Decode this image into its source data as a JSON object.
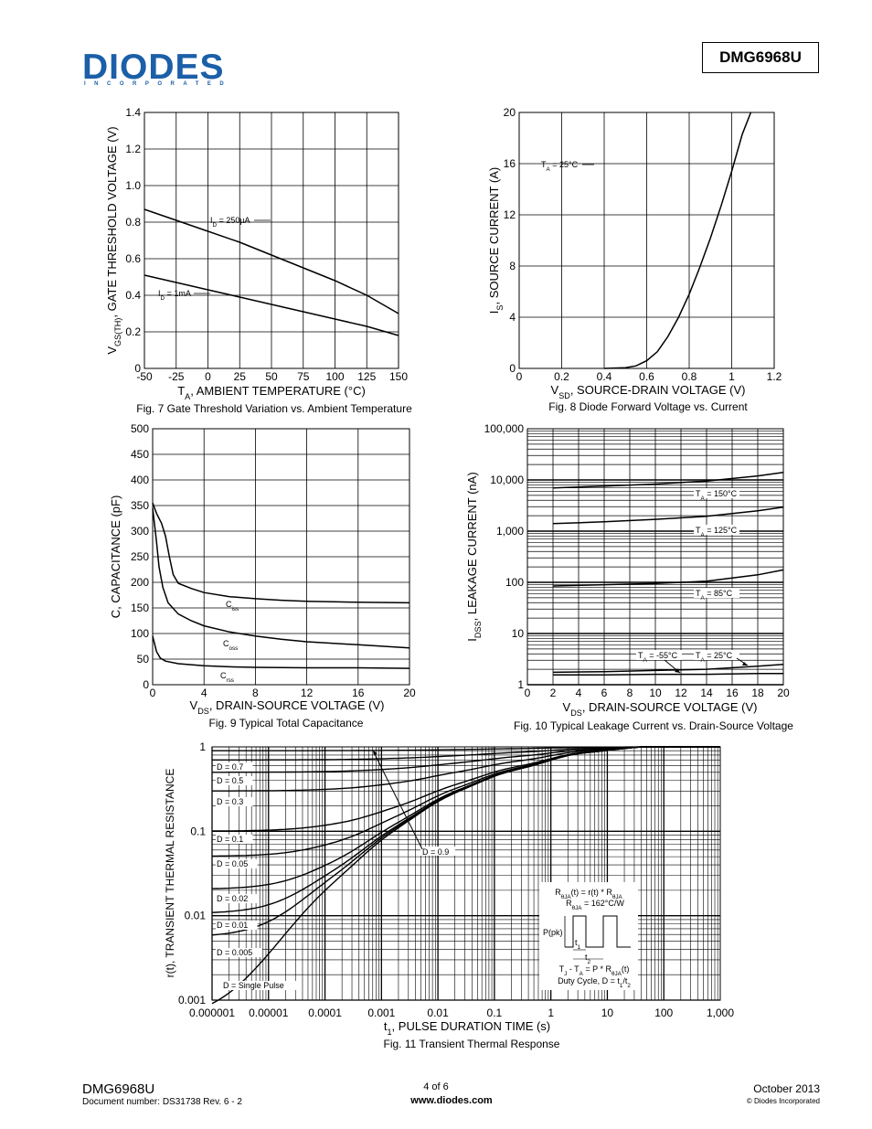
{
  "header": {
    "logo_text": "DIODES",
    "logo_sub": "INCORPORATED",
    "part_number": "DMG6968U"
  },
  "footer": {
    "part": "DMG6968U",
    "doc_number": "Document number: DS31738 Rev. 6 - 2",
    "page": "4 of 6",
    "website": "www.diodes.com",
    "date": "October 2013",
    "copyright": "© Diodes Incorporated"
  },
  "chart_data": [
    {
      "id": "fig7",
      "type": "line",
      "title": "Fig. 7 Gate Threshold Variation vs. Ambient Temperature",
      "xlabel": "TA, AMBIENT TEMPERATURE (°C)",
      "ylabel": "VGS(TH), GATE THRESHOLD VOLTAGE (V)",
      "xlim": [
        -50,
        150
      ],
      "ylim": [
        0,
        1.4
      ],
      "xticks": [
        "-50",
        "-25",
        "0",
        "25",
        "50",
        "75",
        "100",
        "125",
        "150"
      ],
      "yticks": [
        "0",
        "0.2",
        "0.4",
        "0.6",
        "0.8",
        "1.0",
        "1.2",
        "1.4"
      ],
      "grid": true,
      "series": [
        {
          "name": "ID = 250µA",
          "x": [
            -50,
            -25,
            0,
            25,
            50,
            75,
            100,
            125,
            150
          ],
          "y": [
            0.87,
            0.81,
            0.75,
            0.69,
            0.62,
            0.55,
            0.48,
            0.4,
            0.3
          ]
        },
        {
          "name": "ID = 1mA",
          "x": [
            -50,
            -25,
            0,
            25,
            50,
            75,
            100,
            125,
            150
          ],
          "y": [
            0.51,
            0.47,
            0.43,
            0.39,
            0.35,
            0.31,
            0.27,
            0.23,
            0.18
          ]
        }
      ]
    },
    {
      "id": "fig8",
      "type": "line",
      "title": "Fig. 8 Diode Forward Voltage vs. Current",
      "xlabel": "VSD, SOURCE-DRAIN VOLTAGE (V)",
      "ylabel": "IS, SOURCE CURRENT (A)",
      "xlim": [
        0,
        1.2
      ],
      "ylim": [
        0,
        20
      ],
      "xticks": [
        "0",
        "0.2",
        "0.4",
        "0.6",
        "0.8",
        "1",
        "1.2"
      ],
      "yticks": [
        "0",
        "4",
        "8",
        "12",
        "16",
        "20"
      ],
      "grid": true,
      "annotation": "TA = 25°C",
      "series": [
        {
          "name": "TA = 25°C",
          "x": [
            0.4,
            0.5,
            0.55,
            0.6,
            0.65,
            0.7,
            0.75,
            0.8,
            0.85,
            0.9,
            0.95,
            1.0,
            1.05,
            1.09
          ],
          "y": [
            0,
            0.05,
            0.2,
            0.6,
            1.3,
            2.5,
            4.0,
            5.8,
            7.9,
            10.2,
            12.7,
            15.4,
            18.3,
            20
          ]
        }
      ]
    },
    {
      "id": "fig9",
      "type": "line",
      "title": "Fig. 9 Typical Total Capacitance",
      "xlabel": "VDS, DRAIN-SOURCE VOLTAGE (V)",
      "ylabel": "C, CAPACITANCE (pF)",
      "xlim": [
        0,
        20
      ],
      "ylim": [
        0,
        500
      ],
      "xticks": [
        "0",
        "4",
        "8",
        "12",
        "16",
        "20"
      ],
      "yticks": [
        "0",
        "50",
        "100",
        "150",
        "200",
        "250",
        "300",
        "350",
        "400",
        "450",
        "500"
      ],
      "grid": true,
      "series": [
        {
          "name": "Ciss",
          "x": [
            0,
            0.3,
            0.7,
            1.0,
            1.3,
            1.6,
            2,
            3,
            4,
            6,
            8,
            10,
            12,
            14,
            16,
            20
          ],
          "y": [
            355,
            335,
            315,
            290,
            250,
            215,
            198,
            188,
            180,
            172,
            168,
            165,
            163,
            162,
            161,
            160
          ]
        },
        {
          "name": "Coss",
          "x": [
            0,
            0.3,
            0.5,
            0.8,
            1.2,
            2,
            3,
            4,
            6,
            8,
            10,
            12,
            16,
            20
          ],
          "y": [
            345,
            280,
            230,
            190,
            160,
            138,
            125,
            115,
            103,
            95,
            89,
            84,
            78,
            72
          ]
        },
        {
          "name": "Crss",
          "x": [
            0,
            0.3,
            0.6,
            1,
            2,
            4,
            6,
            8,
            12,
            16,
            20
          ],
          "y": [
            95,
            65,
            52,
            46,
            41,
            37,
            35,
            34,
            33,
            33,
            32
          ]
        }
      ]
    },
    {
      "id": "fig10",
      "type": "line",
      "title": "Fig. 10 Typical Leakage Current vs. Drain-Source Voltage",
      "xlabel": "VDS, DRAIN-SOURCE VOLTAGE (V)",
      "ylabel": "IDSS, LEAKAGE CURRENT (nA)",
      "xlim": [
        0,
        20
      ],
      "ylim": [
        1,
        100000
      ],
      "yscale": "log",
      "xticks": [
        "0",
        "2",
        "4",
        "6",
        "8",
        "10",
        "12",
        "14",
        "16",
        "18",
        "20"
      ],
      "yticks": [
        "1",
        "10",
        "100",
        "1,000",
        "10,000",
        "100,000"
      ],
      "grid": true,
      "series": [
        {
          "name": "TA = 150°C",
          "x": [
            2,
            6,
            10,
            14,
            18,
            20
          ],
          "y": [
            7000,
            7600,
            8300,
            9500,
            12000,
            14000
          ]
        },
        {
          "name": "TA = 125°C",
          "x": [
            2,
            6,
            10,
            14,
            18,
            20
          ],
          "y": [
            1400,
            1520,
            1700,
            1950,
            2500,
            2950
          ]
        },
        {
          "name": "TA = 85°C",
          "x": [
            2,
            6,
            10,
            14,
            18,
            20
          ],
          "y": [
            85,
            90,
            95,
            105,
            140,
            175
          ]
        },
        {
          "name": "TA = 25°C",
          "x": [
            2,
            6,
            10,
            14,
            18,
            20
          ],
          "y": [
            1.75,
            1.8,
            1.9,
            2.0,
            2.3,
            2.5
          ]
        },
        {
          "name": "TA = -55°C",
          "x": [
            2,
            6,
            10,
            14,
            18,
            20
          ],
          "y": [
            1.55,
            1.55,
            1.6,
            1.6,
            1.65,
            1.65
          ]
        }
      ]
    },
    {
      "id": "fig11",
      "type": "line",
      "title": "Fig. 11 Transient Thermal Response",
      "xlabel": "t1, PULSE DURATION TIME (s)",
      "ylabel": "r(t), TRANSIENT THERMAL RESISTANCE",
      "xlim": [
        1e-06,
        1000
      ],
      "ylim": [
        0.001,
        1
      ],
      "xscale": "log",
      "yscale": "log",
      "xticks": [
        "0.000001",
        "0.00001",
        "0.0001",
        "0.001",
        "0.01",
        "0.1",
        "1",
        "10",
        "100",
        "1,000"
      ],
      "yticks": [
        "0.001",
        "0.01",
        "0.1",
        "1"
      ],
      "grid": true,
      "labels": [
        "D = 0.7",
        "D = 0.5",
        "D = 0.3",
        "D = 0.1",
        "D = 0.05",
        "D = 0.02",
        "D = 0.01",
        "D = 0.005",
        "D = Single Pulse",
        "D = 0.9"
      ],
      "inset": {
        "formula1": "RθJA(t) = r(t) * RθJA",
        "formula2": "RθJA = 162°C/W",
        "ppk": "P(pk)",
        "t1": "t1",
        "t2": "t2",
        "formula3": "TJ - TA = P * RθJA(t)",
        "formula4": "Duty Cycle, D = t1/t2"
      },
      "series": [
        {
          "name": "D = 0.9",
          "D": 0.9
        },
        {
          "name": "D = 0.7",
          "D": 0.7
        },
        {
          "name": "D = 0.5",
          "D": 0.5
        },
        {
          "name": "D = 0.3",
          "D": 0.3
        },
        {
          "name": "D = 0.1",
          "D": 0.1
        },
        {
          "name": "D = 0.05",
          "D": 0.05
        },
        {
          "name": "D = 0.02",
          "D": 0.02
        },
        {
          "name": "D = 0.01",
          "D": 0.01
        },
        {
          "name": "D = 0.005",
          "D": 0.005
        },
        {
          "name": "D = Single Pulse",
          "D": 0
        }
      ]
    }
  ]
}
